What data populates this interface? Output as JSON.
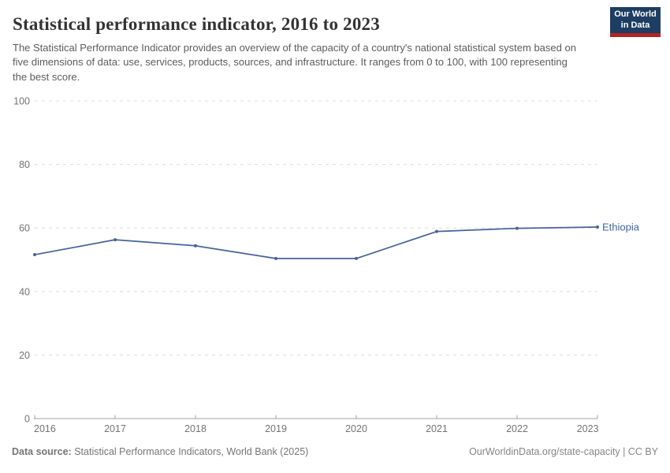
{
  "header": {
    "title": "Statistical performance indicator, 2016 to 2023",
    "subtitle": "The Statistical Performance Indicator provides an overview of the capacity of a country's national statistical system based on five dimensions of data: use, services, products, sources, and infrastructure. It ranges from 0 to 100, with 100 representing the best score.",
    "logo": {
      "line1": "Our World",
      "line2": "in Data"
    }
  },
  "chart_data": {
    "type": "line",
    "x": [
      2016,
      2017,
      2018,
      2019,
      2020,
      2021,
      2022,
      2023
    ],
    "series": [
      {
        "name": "Ethiopia",
        "values": [
          51.6,
          56.3,
          54.4,
          50.4,
          50.4,
          58.9,
          59.9,
          60.3
        ],
        "color": "#46629e"
      }
    ],
    "title": "Statistical performance indicator, 2016 to 2023",
    "xlabel": "",
    "ylabel": "",
    "ylim": [
      0,
      100
    ],
    "yticks": [
      0,
      20,
      40,
      60,
      80,
      100
    ],
    "xticks": [
      2016,
      2017,
      2018,
      2019,
      2020,
      2021,
      2022,
      2023
    ],
    "grid": "horizontal-dashed",
    "legend": "entity label at right end of line",
    "entity_label": "Ethiopia",
    "entity_label_color": "#3d64a8"
  },
  "footer": {
    "source_label": "Data source:",
    "source_text": " Statistical Performance Indicators, World Bank (2025)",
    "attribution": "OurWorldinData.org/state-capacity | CC BY"
  },
  "colors": {
    "line": "#46629e",
    "entity_label": "#3d64a8",
    "grid": "#dcdcdc",
    "axis": "#a3a3a3",
    "tick_label": "#737373",
    "logo_navy": "#1d3d63",
    "logo_red": "#b22222",
    "title_text": "#333333",
    "subtitle_text": "#5b5b5b"
  }
}
